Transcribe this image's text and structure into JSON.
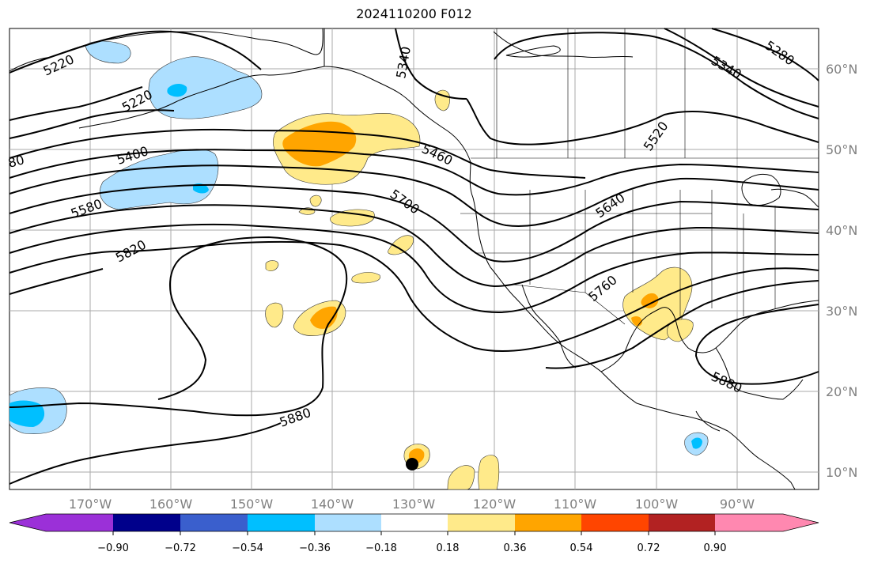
{
  "title": "2024110200 F012",
  "colors": {
    "map_border": "#000000",
    "gridline": "#999999",
    "tick_label": "#808080",
    "bin_colors": [
      "#9b30d8",
      "#00008b",
      "#3a5fcd",
      "#00bfff",
      "#addfff",
      "#ffffff",
      "#ffea8a",
      "#ffa500",
      "#ff4500",
      "#b22222",
      "#ff88b0"
    ]
  },
  "lon_labels": [
    "170°W",
    "160°W",
    "150°W",
    "140°W",
    "130°W",
    "120°W",
    "110°W",
    "100°W",
    "90°W"
  ],
  "lat_labels": [
    "60°N",
    "50°N",
    "40°N",
    "30°N",
    "20°N",
    "10°N"
  ],
  "contour_labels": [
    "5220",
    "5220",
    "5340",
    "5340",
    "5280",
    "80",
    "5400",
    "5460",
    "5520",
    "5580",
    "5700",
    "5640",
    "5820",
    "5760",
    "5880",
    "5880"
  ],
  "colorbar": {
    "ticks": [
      "−0.90",
      "−0.72",
      "−0.54",
      "−0.36",
      "−0.18",
      "0.18",
      "0.36",
      "0.54",
      "0.72",
      "0.90"
    ]
  }
}
